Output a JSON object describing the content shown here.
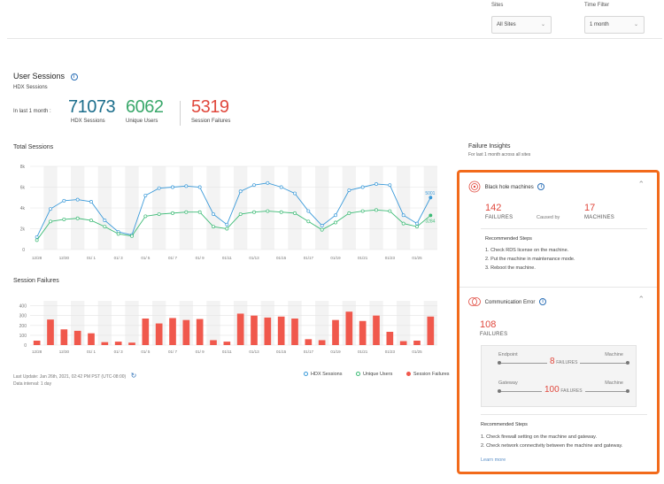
{
  "filters": {
    "sites_label": "Sites",
    "sites_value": "All Sites",
    "time_label": "Time Filter",
    "time_value": "1 month"
  },
  "user_sessions": {
    "title": "User Sessions",
    "subtitle": "HDX Sessions",
    "period_label": "In last 1 month :",
    "stats": [
      {
        "value": "71073",
        "label": "HDX Sessions",
        "color": "#1c6e8c"
      },
      {
        "value": "6062",
        "label": "Unique Users",
        "color": "#3aa86b"
      },
      {
        "value": "5319",
        "label": "Session Failures",
        "color": "#e0483d"
      }
    ]
  },
  "chart_data": [
    {
      "type": "line",
      "title": "Total Sessions",
      "x": [
        "12/28",
        "12/29",
        "12/30",
        "12/31",
        "01/ 1",
        "01/ 2",
        "01/ 3",
        "01/ 4",
        "01/ 5",
        "01/ 6",
        "01/ 7",
        "01/ 8",
        "01/ 9",
        "01/10",
        "01/11",
        "01/12",
        "01/13",
        "01/14",
        "01/15",
        "01/16",
        "01/17",
        "01/18",
        "01/19",
        "01/20",
        "01/21",
        "01/22",
        "01/23",
        "01/24",
        "01/25",
        "01/26"
      ],
      "tick_labels": [
        "12/28",
        "12/30",
        "01/ 1",
        "01/ 3",
        "01/ 5",
        "01/ 7",
        "01/ 9",
        "01/11",
        "01/13",
        "01/15",
        "01/17",
        "01/19",
        "01/21",
        "01/23",
        "01/25"
      ],
      "y_ticks": [
        "0",
        "2k",
        "4k",
        "6k",
        "8k"
      ],
      "ylim": [
        0,
        8000
      ],
      "series": [
        {
          "name": "HDX Sessions",
          "color": "#3b9ad9",
          "values": [
            1200,
            3900,
            4700,
            4800,
            4600,
            2800,
            1700,
            1400,
            5200,
            5900,
            6000,
            6100,
            6000,
            3400,
            2400,
            5600,
            6200,
            6400,
            6000,
            5400,
            3700,
            2300,
            3300,
            5700,
            6000,
            6300,
            6200,
            3300,
            2500,
            5001
          ]
        },
        {
          "name": "Unique Users",
          "color": "#3dbb76",
          "values": [
            900,
            2700,
            2900,
            3000,
            2800,
            2200,
            1500,
            1300,
            3200,
            3400,
            3500,
            3600,
            3600,
            2200,
            2000,
            3400,
            3600,
            3700,
            3600,
            3500,
            2700,
            1900,
            2600,
            3500,
            3700,
            3800,
            3700,
            2500,
            2200,
            3284
          ]
        }
      ],
      "end_labels": [
        "5001",
        "3284"
      ]
    },
    {
      "type": "bar",
      "title": "Session Failures",
      "x": [
        "12/28",
        "12/29",
        "12/30",
        "12/31",
        "01/ 1",
        "01/ 2",
        "01/ 3",
        "01/ 4",
        "01/ 5",
        "01/ 6",
        "01/ 7",
        "01/ 8",
        "01/ 9",
        "01/10",
        "01/11",
        "01/12",
        "01/13",
        "01/14",
        "01/15",
        "01/16",
        "01/17",
        "01/18",
        "01/19",
        "01/20",
        "01/21",
        "01/22",
        "01/23",
        "01/24",
        "01/25",
        "01/26"
      ],
      "tick_labels": [
        "12/28",
        "12/30",
        "01/ 1",
        "01/ 3",
        "01/ 5",
        "01/ 7",
        "01/ 9",
        "01/11",
        "01/13",
        "01/15",
        "01/17",
        "01/19",
        "01/21",
        "01/23",
        "01/25"
      ],
      "y_ticks": [
        "0",
        "100",
        "200",
        "300",
        "400"
      ],
      "ylim": [
        0,
        450
      ],
      "series": [
        {
          "name": "Session Failures",
          "color": "#f0584c",
          "values": [
            45,
            260,
            160,
            145,
            120,
            30,
            35,
            25,
            270,
            220,
            275,
            255,
            265,
            50,
            35,
            320,
            300,
            280,
            290,
            270,
            60,
            50,
            255,
            340,
            245,
            300,
            135,
            40,
            45,
            290
          ]
        }
      ]
    }
  ],
  "legend": [
    {
      "label": "HDX Sessions",
      "color": "#3b9ad9",
      "hollow": true
    },
    {
      "label": "Unique Users",
      "color": "#3dbb76",
      "hollow": true
    },
    {
      "label": "Session Failures",
      "color": "#f0584c",
      "hollow": false
    }
  ],
  "footer": {
    "last_update": "Last Update: Jan 26th, 2021, 02:42 PM PST (UTC-08:00)",
    "interval": "Data interval: 1 day"
  },
  "insights": {
    "title": "Failure Insights",
    "subtitle": "For last 1 month across all sites",
    "black_hole": {
      "title": "Black hole machines",
      "failures_value": "142",
      "failures_label": "FAILURES",
      "caused_by": "Caused by",
      "machines_value": "17",
      "machines_label": "MACHINES",
      "steps_title": "Recommended Steps",
      "steps": [
        "1.  Check RDS license on the machine.",
        "2.  Put the machine in maintenance mode.",
        "3.  Reboot the machine."
      ]
    },
    "comm_error": {
      "title": "Communication Error",
      "failures_value": "108",
      "failures_label": "FAILURES",
      "endpoint_label": "Endpoint",
      "machine_label_1": "Machine",
      "endpoint_failures_value": "8",
      "endpoint_failures_label": "FAILURES",
      "gateway_label": "Gateway",
      "machine_label_2": "Machine",
      "gateway_failures_value": "100",
      "gateway_failures_label": "FAILURES",
      "steps_title": "Recommended Steps",
      "steps": [
        "1.  Check firewall setting on the machine and gateway.",
        "2.  Check network connectivity between the machine and gateway."
      ],
      "learn_more": "Learn more"
    }
  }
}
